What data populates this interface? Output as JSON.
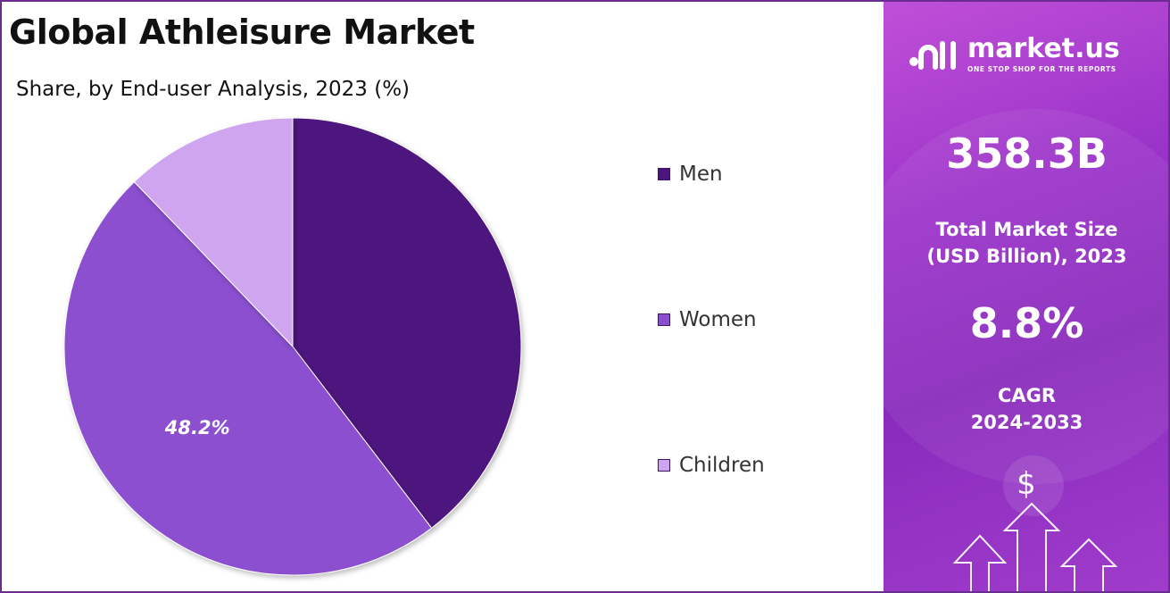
{
  "header": {
    "title": "Global Athleisure Market",
    "subtitle": "Share, by End-user Analysis, 2023 (%)"
  },
  "chart_data": {
    "type": "pie",
    "title": "Global Athleisure Market",
    "subtitle": "Share, by End-user Analysis, 2023 (%)",
    "categories": [
      "Men",
      "Women",
      "Children"
    ],
    "values": [
      39.6,
      48.2,
      12.2
    ],
    "colors": [
      "#4e157e",
      "#8b4fd0",
      "#d0a5ef"
    ],
    "data_labels": [
      "",
      "48.2%",
      ""
    ],
    "legend": "right"
  },
  "panel": {
    "logo_name": "market.us",
    "logo_tagline": "ONE STOP SHOP FOR THE REPORTS",
    "market_size": "358.3B",
    "market_size_caption_1": "Total Market Size",
    "market_size_caption_2": "(USD Billion), 2023",
    "cagr": "8.8%",
    "cagr_caption_1": "CAGR",
    "cagr_caption_2": "2024-2033",
    "dollar_symbol": "$"
  }
}
